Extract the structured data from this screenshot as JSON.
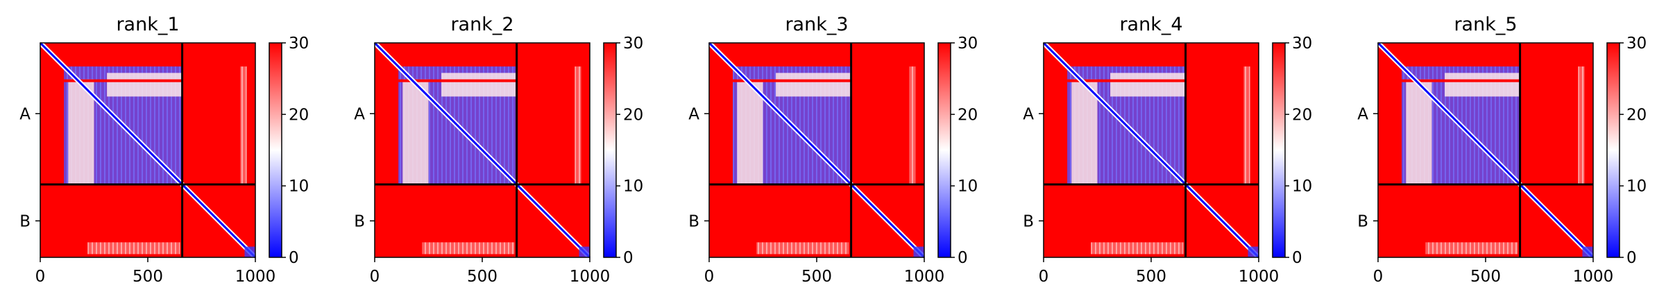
{
  "chart_data": [
    {
      "type": "heatmap",
      "title": "rank_1",
      "xticks": [
        0,
        500,
        1000
      ],
      "yticks": [
        "A",
        "B"
      ],
      "colorbar_ticks": [
        0,
        10,
        20,
        30
      ],
      "vmin": 0,
      "vmax": 30,
      "colormap": [
        "#0000ff",
        "#ffffff",
        "#ff0000"
      ],
      "xlim": [
        0,
        1000
      ],
      "chain_boundary": 660,
      "chain_length": 1000,
      "mid_band": [
        110,
        660
      ],
      "mid_band_rows": [
        170,
        660
      ]
    },
    {
      "type": "heatmap",
      "title": "rank_2",
      "xticks": [
        0,
        500,
        1000
      ],
      "yticks": [
        "A",
        "B"
      ],
      "colorbar_ticks": [
        0,
        10,
        20,
        30
      ],
      "vmin": 0,
      "vmax": 30,
      "colormap": [
        "#0000ff",
        "#ffffff",
        "#ff0000"
      ],
      "xlim": [
        0,
        1000
      ],
      "chain_boundary": 660,
      "chain_length": 1000,
      "mid_band": [
        110,
        660
      ],
      "mid_band_rows": [
        170,
        660
      ]
    },
    {
      "type": "heatmap",
      "title": "rank_3",
      "xticks": [
        0,
        500,
        1000
      ],
      "yticks": [
        "A",
        "B"
      ],
      "colorbar_ticks": [
        0,
        10,
        20,
        30
      ],
      "vmin": 0,
      "vmax": 30,
      "colormap": [
        "#0000ff",
        "#ffffff",
        "#ff0000"
      ],
      "xlim": [
        0,
        1000
      ],
      "chain_boundary": 660,
      "chain_length": 1000,
      "mid_band": [
        110,
        660
      ],
      "mid_band_rows": [
        170,
        660
      ]
    },
    {
      "type": "heatmap",
      "title": "rank_4",
      "xticks": [
        0,
        500,
        1000
      ],
      "yticks": [
        "A",
        "B"
      ],
      "colorbar_ticks": [
        0,
        10,
        20,
        30
      ],
      "vmin": 0,
      "vmax": 30,
      "colormap": [
        "#0000ff",
        "#ffffff",
        "#ff0000"
      ],
      "xlim": [
        0,
        1000
      ],
      "chain_boundary": 660,
      "chain_length": 1000,
      "mid_band": [
        110,
        660
      ],
      "mid_band_rows": [
        170,
        660
      ]
    },
    {
      "type": "heatmap",
      "title": "rank_5",
      "xticks": [
        0,
        500,
        1000
      ],
      "yticks": [
        "A",
        "B"
      ],
      "colorbar_ticks": [
        0,
        10,
        20,
        30
      ],
      "vmin": 0,
      "vmax": 30,
      "colormap": [
        "#0000ff",
        "#ffffff",
        "#ff0000"
      ],
      "xlim": [
        0,
        1000
      ],
      "chain_boundary": 660,
      "chain_length": 1000,
      "mid_band": [
        110,
        660
      ],
      "mid_band_rows": [
        170,
        660
      ]
    }
  ]
}
